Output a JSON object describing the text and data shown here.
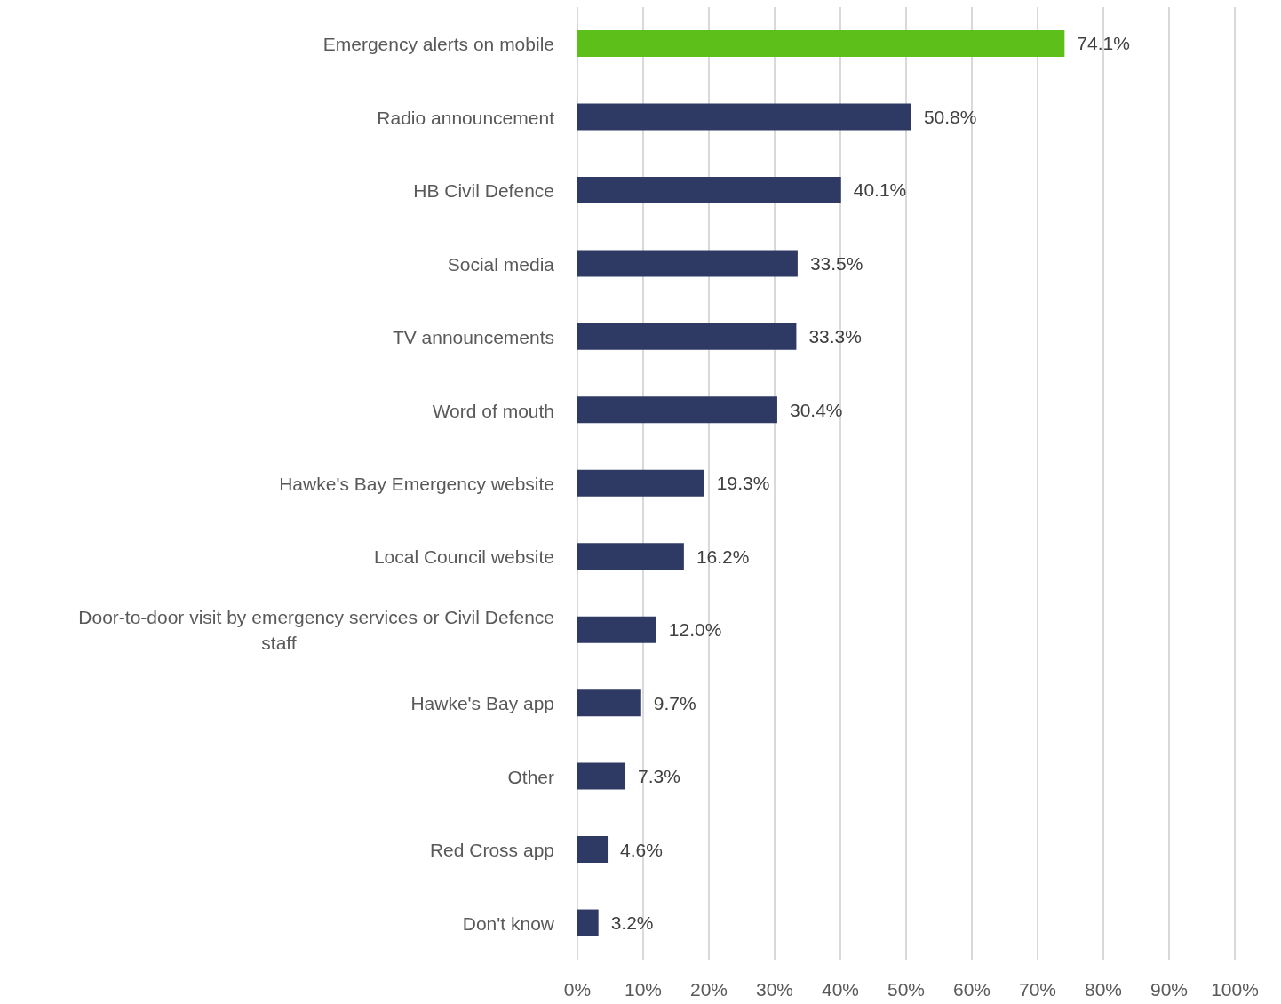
{
  "chart_data": {
    "type": "bar",
    "orientation": "horizontal",
    "categories": [
      "Emergency alerts on mobile",
      "Radio announcement",
      "HB Civil Defence",
      "Social media",
      "TV announcements",
      "Word of mouth",
      "Hawke's Bay Emergency website",
      "Local Council website",
      "Door-to-door visit by emergency services or Civil Defence staff",
      "Hawke's Bay app",
      "Other",
      "Red Cross app",
      "Don't know"
    ],
    "values": [
      74.1,
      50.8,
      40.1,
      33.5,
      33.3,
      30.4,
      19.3,
      16.2,
      12.0,
      9.7,
      7.3,
      4.6,
      3.2
    ],
    "value_labels": [
      "74.1%",
      "50.8%",
      "40.1%",
      "33.5%",
      "33.3%",
      "30.4%",
      "19.3%",
      "16.2%",
      "12.0%",
      "9.7%",
      "7.3%",
      "4.6%",
      "3.2%"
    ],
    "colors": [
      "#5cbf1a",
      "#2e3a64",
      "#2e3a64",
      "#2e3a64",
      "#2e3a64",
      "#2e3a64",
      "#2e3a64",
      "#2e3a64",
      "#2e3a64",
      "#2e3a64",
      "#2e3a64",
      "#2e3a64",
      "#2e3a64"
    ],
    "xlim": [
      0,
      100
    ],
    "xticks": [
      {
        "value": 0,
        "label": "0%"
      },
      {
        "value": 10,
        "label": "10%"
      },
      {
        "value": 20,
        "label": "20%"
      },
      {
        "value": 30,
        "label": "30%"
      },
      {
        "value": 40,
        "label": "40%"
      },
      {
        "value": 50,
        "label": "50%"
      },
      {
        "value": 60,
        "label": "60%"
      },
      {
        "value": 70,
        "label": "70%"
      },
      {
        "value": 80,
        "label": "80%"
      },
      {
        "value": 90,
        "label": "90%"
      },
      {
        "value": 100,
        "label": "100%"
      }
    ],
    "grid": "x"
  }
}
